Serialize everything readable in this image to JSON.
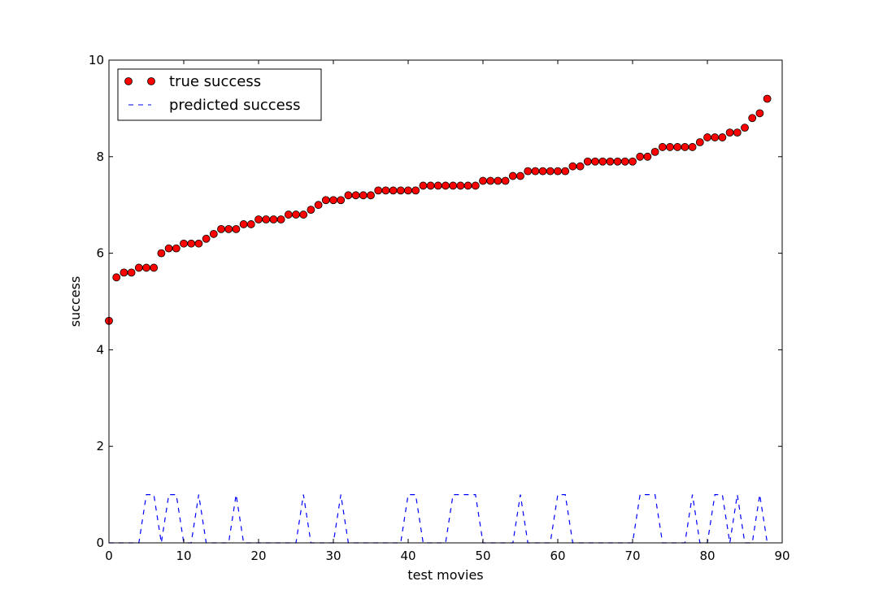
{
  "chart_data": {
    "type": "scatter",
    "xlabel": "test movies",
    "ylabel": "success",
    "xlim": [
      0,
      90
    ],
    "ylim": [
      0,
      10
    ],
    "xticks": [
      0,
      10,
      20,
      30,
      40,
      50,
      60,
      70,
      80,
      90
    ],
    "yticks": [
      0,
      2,
      4,
      6,
      8,
      10
    ],
    "grid": false,
    "legend_position": "top-left",
    "series": [
      {
        "name": "true success",
        "marker": "circle",
        "color": "#ff0000",
        "x": [
          0,
          1,
          2,
          3,
          4,
          5,
          6,
          7,
          8,
          9,
          10,
          11,
          12,
          13,
          14,
          15,
          16,
          17,
          18,
          19,
          20,
          21,
          22,
          23,
          24,
          25,
          26,
          27,
          28,
          29,
          30,
          31,
          32,
          33,
          34,
          35,
          36,
          37,
          38,
          39,
          40,
          41,
          42,
          43,
          44,
          45,
          46,
          47,
          48,
          49,
          50,
          51,
          52,
          53,
          54,
          55,
          56,
          57,
          58,
          59,
          60,
          61,
          62,
          63,
          64,
          65,
          66,
          67,
          68,
          69,
          70,
          71,
          72,
          73,
          74,
          75,
          76,
          77,
          78,
          79,
          80,
          81,
          82,
          83,
          84,
          85,
          86,
          87,
          88
        ],
        "y": [
          4.6,
          5.5,
          5.6,
          5.6,
          5.7,
          5.7,
          5.7,
          6.0,
          6.1,
          6.1,
          6.2,
          6.2,
          6.2,
          6.3,
          6.4,
          6.5,
          6.5,
          6.5,
          6.6,
          6.6,
          6.7,
          6.7,
          6.7,
          6.7,
          6.8,
          6.8,
          6.8,
          6.9,
          7.0,
          7.1,
          7.1,
          7.1,
          7.2,
          7.2,
          7.2,
          7.2,
          7.3,
          7.3,
          7.3,
          7.3,
          7.3,
          7.3,
          7.4,
          7.4,
          7.4,
          7.4,
          7.4,
          7.4,
          7.4,
          7.4,
          7.5,
          7.5,
          7.5,
          7.5,
          7.6,
          7.6,
          7.7,
          7.7,
          7.7,
          7.7,
          7.7,
          7.7,
          7.8,
          7.8,
          7.9,
          7.9,
          7.9,
          7.9,
          7.9,
          7.9,
          7.9,
          8.0,
          8.0,
          8.1,
          8.2,
          8.2,
          8.2,
          8.2,
          8.2,
          8.3,
          8.4,
          8.4,
          8.4,
          8.5,
          8.5,
          8.6,
          8.8,
          8.9,
          9.2
        ]
      },
      {
        "name": "predicted success",
        "line_style": "dashed",
        "color": "#0000ff",
        "x": [
          0,
          1,
          2,
          3,
          4,
          5,
          6,
          7,
          8,
          9,
          10,
          11,
          12,
          13,
          14,
          15,
          16,
          17,
          18,
          19,
          20,
          21,
          22,
          23,
          24,
          25,
          26,
          27,
          28,
          29,
          30,
          31,
          32,
          33,
          34,
          35,
          36,
          37,
          38,
          39,
          40,
          41,
          42,
          43,
          44,
          45,
          46,
          47,
          48,
          49,
          50,
          51,
          52,
          53,
          54,
          55,
          56,
          57,
          58,
          59,
          60,
          61,
          62,
          63,
          64,
          65,
          66,
          67,
          68,
          69,
          70,
          71,
          72,
          73,
          74,
          75,
          76,
          77,
          78,
          79,
          80,
          81,
          82,
          83,
          84,
          85,
          86,
          87,
          88
        ],
        "y": [
          0,
          0,
          0,
          0,
          0,
          1,
          1,
          0,
          1,
          1,
          0,
          0,
          1,
          0,
          0,
          0,
          0,
          1,
          0,
          0,
          0,
          0,
          0,
          0,
          0,
          0,
          1,
          0,
          0,
          0,
          0,
          1,
          0,
          0,
          0,
          0,
          0,
          0,
          0,
          0,
          1,
          1,
          0,
          0,
          0,
          0,
          1,
          1,
          1,
          1,
          0,
          0,
          0,
          0,
          0,
          1,
          0,
          0,
          0,
          0,
          1,
          1,
          0,
          0,
          0,
          0,
          0,
          0,
          0,
          0,
          0,
          1,
          1,
          1,
          0,
          0,
          0,
          0,
          1,
          0,
          0,
          1,
          1,
          0,
          1,
          0,
          0,
          1,
          0
        ]
      }
    ]
  }
}
